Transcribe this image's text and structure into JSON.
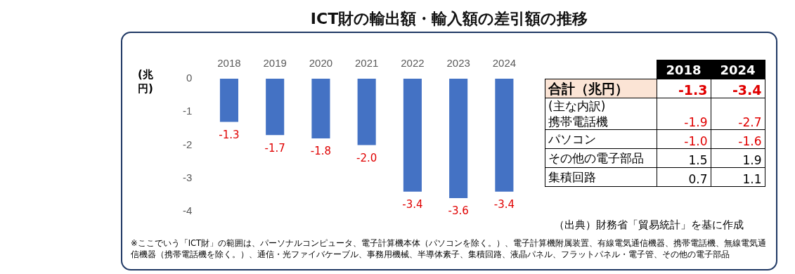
{
  "chart_data": [
    {
      "type": "bar",
      "title": "ICT財の輸出額・輸入額の差引額の推移",
      "ylabel": "(兆円)",
      "categories": [
        "2018",
        "2019",
        "2020",
        "2021",
        "2022",
        "2023",
        "2024"
      ],
      "values": [
        -1.3,
        -1.7,
        -1.8,
        -2.0,
        -3.4,
        -3.6,
        -3.4
      ],
      "value_labels": [
        "-1.3",
        "-1.7",
        "-1.8",
        "-2.0",
        "-3.4",
        "-3.6",
        "-3.4"
      ],
      "color": "#4472c4",
      "ylim": [
        -4,
        0
      ],
      "yticks": [
        -4,
        -3,
        -2,
        -1,
        0
      ],
      "grid": false,
      "legend": false,
      "annotations": [
        "（出典）財務省「貿易統計」を基に作成",
        "※ここでいう「ICT財」の範囲は、パーソナルコンピュータ、電子計算機本体（パソコンを除く。）、電子計算機附属装置、有線電気通信機器、携帯電話機、無線電気通信機器（携帯電話機を除く。）、通信・光ファイバケーブル、事務用機械、半導体素子、集積回路、液晶パネル、フラットパネル・電子管、その他の電子部品"
      ]
    },
    {
      "type": "other",
      "categories": [
        "2018",
        "2024"
      ],
      "y_categories": [
        "合計（兆円）",
        "(主な内訳)\n携帯電話機",
        "パソコン",
        "その他の電子部品",
        "集積回路"
      ],
      "cell_labels": [
        [
          "-1.3",
          "-3.4"
        ],
        [
          "-1.9",
          "-2.7"
        ],
        [
          "-1.0",
          "-1.6"
        ],
        [
          "1.5",
          "1.9"
        ],
        [
          "0.7",
          "1.1"
        ]
      ]
    }
  ]
}
